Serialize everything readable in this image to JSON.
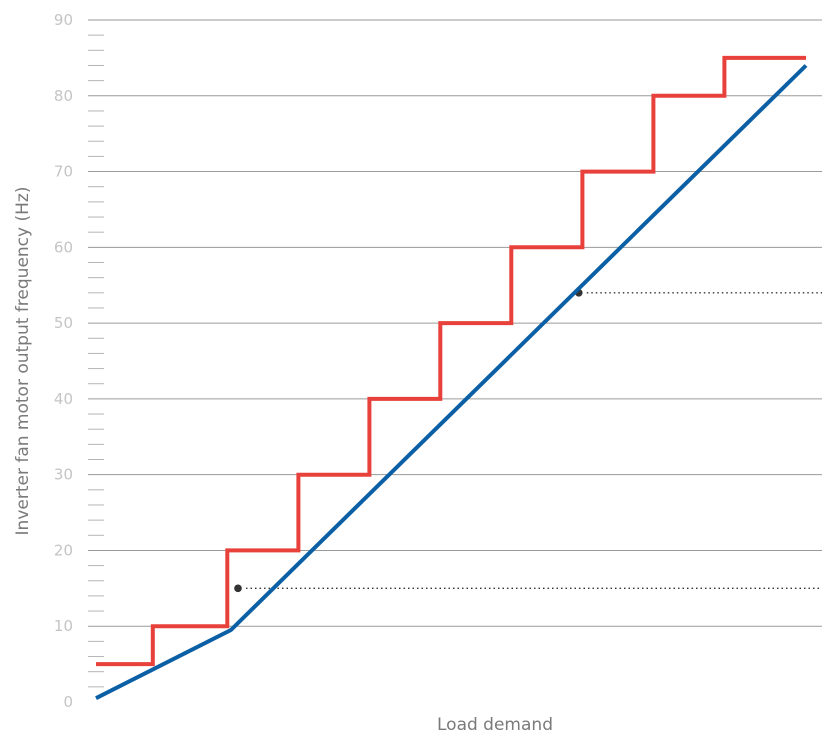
{
  "chart_data": {
    "type": "line",
    "xlabel": "Load demand",
    "ylabel": "Inverter fan motor output frequency (Hz)",
    "xlim": [
      0,
      100
    ],
    "ylim": [
      0,
      90
    ],
    "y_ticks": [
      "0",
      "10",
      "20",
      "30",
      "40",
      "50",
      "60",
      "70",
      "80",
      "90"
    ],
    "minor_tick_step": 2,
    "grid": true,
    "colors": {
      "stepped": "#e8403a",
      "linear": "#0b5fa5",
      "marker": "#333333",
      "grid": "#9a9a9a",
      "ticks": "#c4c4c4"
    },
    "series": [
      {
        "x": [
          0,
          8,
          8,
          18.5,
          18.5,
          28.5,
          28.5,
          38.5,
          38.5,
          48.5,
          48.5,
          58.5,
          58.5,
          68.5,
          68.5,
          78.5,
          78.5,
          88.5,
          88.5,
          100
        ],
        "y": [
          5,
          5,
          10,
          10,
          20,
          20,
          30,
          30,
          40,
          40,
          50,
          50,
          60,
          60,
          70,
          70,
          80,
          80,
          85,
          85
        ]
      },
      {
        "x": [
          0,
          19,
          100
        ],
        "y": [
          0.5,
          9.5,
          84
        ]
      }
    ],
    "markers": [
      {
        "x": 20,
        "y": 15,
        "line_to_x": 100
      },
      {
        "x": 68,
        "y": 54,
        "line_to_x": 100
      }
    ]
  }
}
